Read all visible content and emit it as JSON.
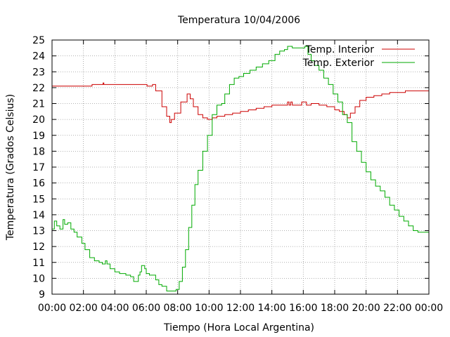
{
  "chart_data": {
    "type": "line",
    "title": "Temperatura 10/04/2006",
    "xlabel": "Tiempo (Hora Local Argentina)",
    "ylabel": "Temperatura (Grados Celsius)",
    "xlim": [
      0,
      24
    ],
    "ylim": [
      9,
      25
    ],
    "grid": true,
    "legend_position": "top-right",
    "x_ticks": [
      {
        "value": 0,
        "label": "00:00"
      },
      {
        "value": 2,
        "label": "02:00"
      },
      {
        "value": 4,
        "label": "04:00"
      },
      {
        "value": 6,
        "label": "06:00"
      },
      {
        "value": 8,
        "label": "08:00"
      },
      {
        "value": 10,
        "label": "10:00"
      },
      {
        "value": 12,
        "label": "12:00"
      },
      {
        "value": 14,
        "label": "14:00"
      },
      {
        "value": 16,
        "label": "16:00"
      },
      {
        "value": 18,
        "label": "18:00"
      },
      {
        "value": 20,
        "label": "20:00"
      },
      {
        "value": 22,
        "label": "22:00"
      },
      {
        "value": 24,
        "label": "00:00"
      }
    ],
    "y_ticks": [
      9,
      10,
      11,
      12,
      13,
      14,
      15,
      16,
      17,
      18,
      19,
      20,
      21,
      22,
      23,
      24,
      25
    ],
    "series": [
      {
        "name": "Temp. Interior",
        "color": "#cc0000",
        "x": [
          0,
          2.5,
          2.55,
          3.2,
          3.25,
          3.3,
          6.0,
          6.05,
          6.3,
          6.4,
          6.6,
          7.0,
          7.3,
          7.5,
          7.6,
          7.8,
          8.2,
          8.6,
          8.8,
          9.0,
          9.3,
          9.6,
          9.9,
          10.2,
          10.5,
          11.0,
          11.5,
          12.0,
          12.5,
          13.0,
          13.5,
          14.0,
          14.5,
          14.9,
          15.0,
          15.1,
          15.2,
          15.3,
          15.5,
          15.9,
          16.0,
          16.2,
          16.3,
          16.5,
          17.0,
          17.5,
          18.0,
          18.3,
          18.6,
          18.8,
          19.0,
          19.3,
          19.6,
          20.0,
          20.5,
          21.0,
          21.5,
          22.0,
          22.5,
          23.0,
          23.5,
          24.0
        ],
        "y": [
          22.1,
          22.1,
          22.2,
          22.2,
          22.3,
          22.2,
          22.2,
          22.1,
          22.1,
          22.2,
          21.8,
          20.8,
          20.2,
          19.8,
          20.0,
          20.4,
          21.1,
          21.6,
          21.3,
          20.8,
          20.3,
          20.1,
          20.0,
          20.1,
          20.2,
          20.3,
          20.4,
          20.5,
          20.6,
          20.7,
          20.8,
          20.9,
          20.9,
          20.9,
          21.1,
          20.9,
          21.1,
          20.9,
          20.9,
          21.1,
          21.1,
          20.9,
          20.9,
          21.0,
          20.9,
          20.8,
          20.6,
          20.5,
          20.3,
          20.1,
          20.4,
          20.8,
          21.2,
          21.4,
          21.5,
          21.6,
          21.7,
          21.7,
          21.8,
          21.8,
          21.8,
          21.8
        ]
      },
      {
        "name": "Temp. Exterior",
        "color": "#00aa00",
        "x": [
          0,
          0.15,
          0.3,
          0.5,
          0.7,
          0.8,
          1.0,
          1.2,
          1.4,
          1.6,
          1.9,
          2.1,
          2.4,
          2.7,
          3.0,
          3.2,
          3.4,
          3.5,
          3.7,
          4.0,
          4.3,
          4.7,
          5.0,
          5.2,
          5.4,
          5.5,
          5.6,
          5.7,
          5.9,
          6.0,
          6.2,
          6.4,
          6.6,
          6.8,
          7.0,
          7.3,
          7.6,
          7.9,
          8.1,
          8.3,
          8.5,
          8.7,
          8.9,
          9.1,
          9.3,
          9.6,
          9.9,
          10.2,
          10.5,
          10.8,
          11.0,
          11.3,
          11.6,
          11.9,
          12.2,
          12.6,
          13.0,
          13.4,
          13.8,
          14.2,
          14.5,
          14.8,
          15.0,
          15.3,
          15.6,
          15.9,
          16.1,
          16.3,
          16.5,
          16.7,
          17.0,
          17.3,
          17.6,
          17.9,
          18.2,
          18.5,
          18.8,
          19.1,
          19.4,
          19.7,
          20.0,
          20.3,
          20.6,
          20.9,
          21.2,
          21.5,
          21.8,
          22.1,
          22.4,
          22.7,
          23.0,
          23.3,
          23.6,
          23.8,
          24.0
        ],
        "y": [
          13.1,
          13.6,
          13.3,
          13.1,
          13.7,
          13.4,
          13.5,
          13.1,
          12.9,
          12.6,
          12.2,
          11.8,
          11.3,
          11.1,
          11.0,
          10.9,
          11.1,
          10.9,
          10.6,
          10.4,
          10.3,
          10.2,
          10.1,
          9.8,
          9.8,
          10.2,
          10.4,
          10.8,
          10.6,
          10.3,
          10.2,
          10.2,
          9.9,
          9.6,
          9.5,
          9.2,
          9.2,
          9.3,
          9.8,
          10.7,
          11.8,
          13.2,
          14.6,
          15.9,
          16.8,
          18.0,
          19.0,
          20.3,
          20.9,
          21.0,
          21.6,
          22.2,
          22.6,
          22.7,
          22.9,
          23.1,
          23.3,
          23.5,
          23.7,
          24.1,
          24.3,
          24.4,
          24.6,
          24.5,
          24.5,
          24.5,
          24.6,
          24.1,
          23.7,
          23.4,
          23.1,
          22.6,
          22.2,
          21.6,
          21.1,
          20.3,
          19.8,
          18.6,
          18.0,
          17.3,
          16.7,
          16.2,
          15.8,
          15.5,
          15.1,
          14.6,
          14.3,
          13.9,
          13.6,
          13.3,
          13.0,
          12.9,
          12.9,
          12.9,
          12.3
        ]
      }
    ]
  }
}
